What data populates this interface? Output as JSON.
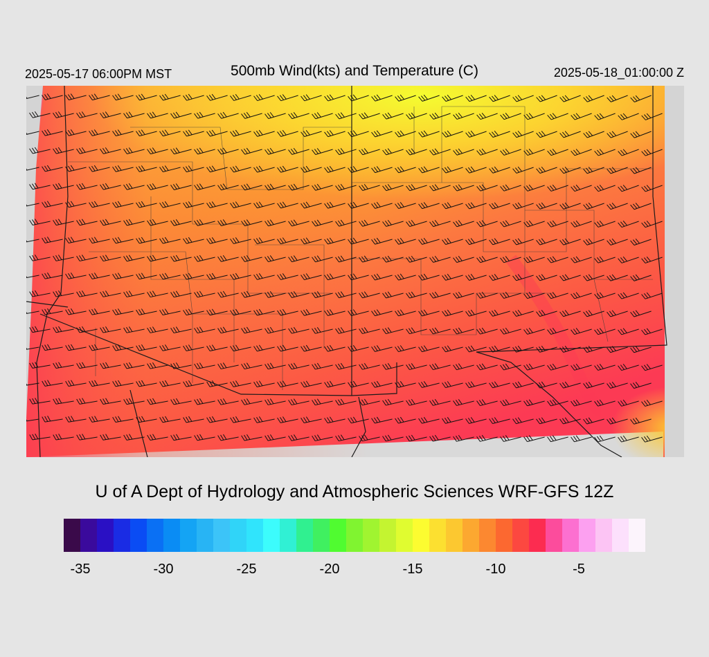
{
  "header": {
    "title": "500mb Wind(kts) and Temperature (C)",
    "valid_local": "2025-05-17 06:00PM MST",
    "valid_utc": "2025-05-18_01:00:00 Z"
  },
  "credit": "U of A Dept of Hydrology and Atmospheric Sciences WRF-GFS 12Z",
  "map": {
    "field": "500mb temperature (C) with wind barbs (kts)",
    "temperature_range_c": [
      -17,
      -7
    ],
    "wind_barbs": "westerly to west-southwesterly, mostly 30-40 kts"
  },
  "legend": {
    "units": "C",
    "colors": [
      "#3a0a4a",
      "#3a0a9c",
      "#2a10c4",
      "#1a2ce4",
      "#0a4cf4",
      "#0a70f4",
      "#0a8cf4",
      "#14a4f4",
      "#28b4f4",
      "#3cc4f8",
      "#30d4f8",
      "#30e4fc",
      "#3cfcfc",
      "#30f0d4",
      "#30f090",
      "#40f060",
      "#50fc30",
      "#80f430",
      "#a0f430",
      "#c4f430",
      "#e0fc30",
      "#fcfc30",
      "#fce030",
      "#fcc830",
      "#fca830",
      "#fc8830",
      "#fc6830",
      "#fc4840",
      "#fc2c50",
      "#fc4c9c",
      "#fc70d0",
      "#fca0f0",
      "#fcc4f4",
      "#fce0fc",
      "#fcf4fc"
    ],
    "labels": [
      "-35",
      "-30",
      "-25",
      "-20",
      "-15",
      "-10",
      "-5"
    ]
  }
}
